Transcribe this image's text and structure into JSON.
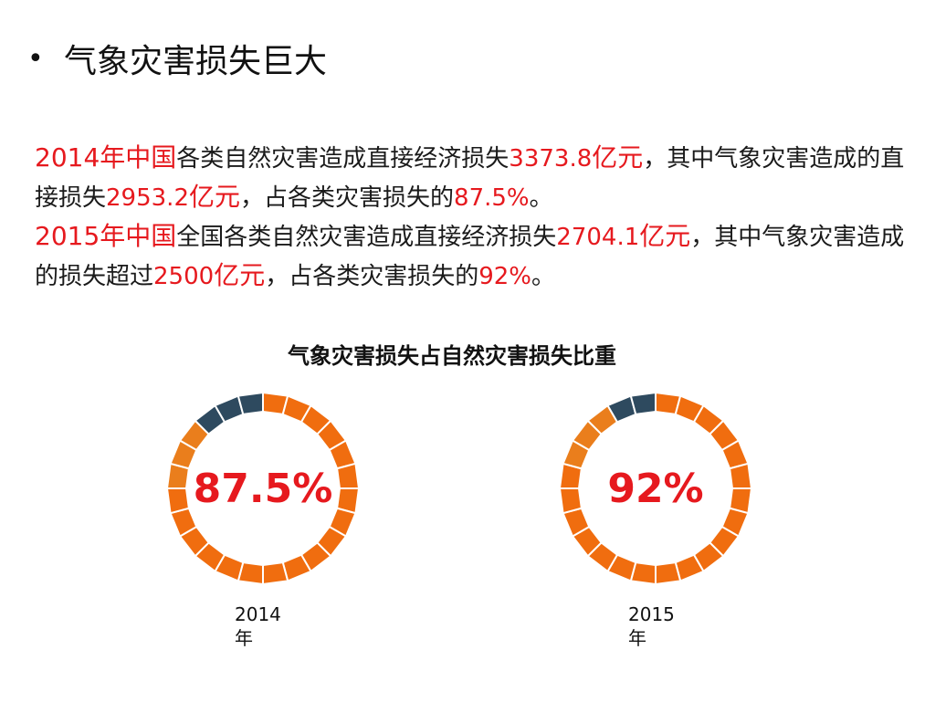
{
  "heading": {
    "bullet": "•",
    "text": "气象灾害损失巨大"
  },
  "paragraph": {
    "p1": [
      {
        "t": "2014年中国",
        "c": "red big"
      },
      {
        "t": "各类自然灾害造成直接经济损失",
        "c": ""
      },
      {
        "t": "3373.8",
        "c": "red"
      },
      {
        "t": "亿元",
        "c": "red big"
      },
      {
        "t": "，其中气象灾害造成的直接损失",
        "c": ""
      },
      {
        "t": "2953.2",
        "c": "red"
      },
      {
        "t": "亿元",
        "c": "red big"
      },
      {
        "t": "，占各类灾害损失的",
        "c": ""
      },
      {
        "t": "87.5%",
        "c": "red"
      },
      {
        "t": "。",
        "c": ""
      }
    ],
    "p2": [
      {
        "t": "2015年中国",
        "c": "red big"
      },
      {
        "t": "全国各类自然灾害造成直接经济损失",
        "c": ""
      },
      {
        "t": "2704.1",
        "c": "red"
      },
      {
        "t": "亿元",
        "c": "red big"
      },
      {
        "t": "，其中气象灾害造成的损失超过",
        "c": ""
      },
      {
        "t": "2500",
        "c": "red"
      },
      {
        "t": "亿元",
        "c": "red big"
      },
      {
        "t": "，占各类灾害损失的",
        "c": ""
      },
      {
        "t": "92%",
        "c": "red"
      },
      {
        "t": "。",
        "c": ""
      }
    ]
  },
  "chart_data": {
    "type": "pie",
    "title": "气象灾害损失占自然灾害损失比重",
    "categories": [
      "2014年",
      "2015年"
    ],
    "values": [
      87.5,
      92
    ],
    "value_labels": [
      "87.5%",
      "92%"
    ],
    "segments_total": 24,
    "colors": {
      "share": "#f06d0f",
      "share_light": "#ea7e1c",
      "rest": "#2e4a5f",
      "label": "#e6191e"
    }
  }
}
